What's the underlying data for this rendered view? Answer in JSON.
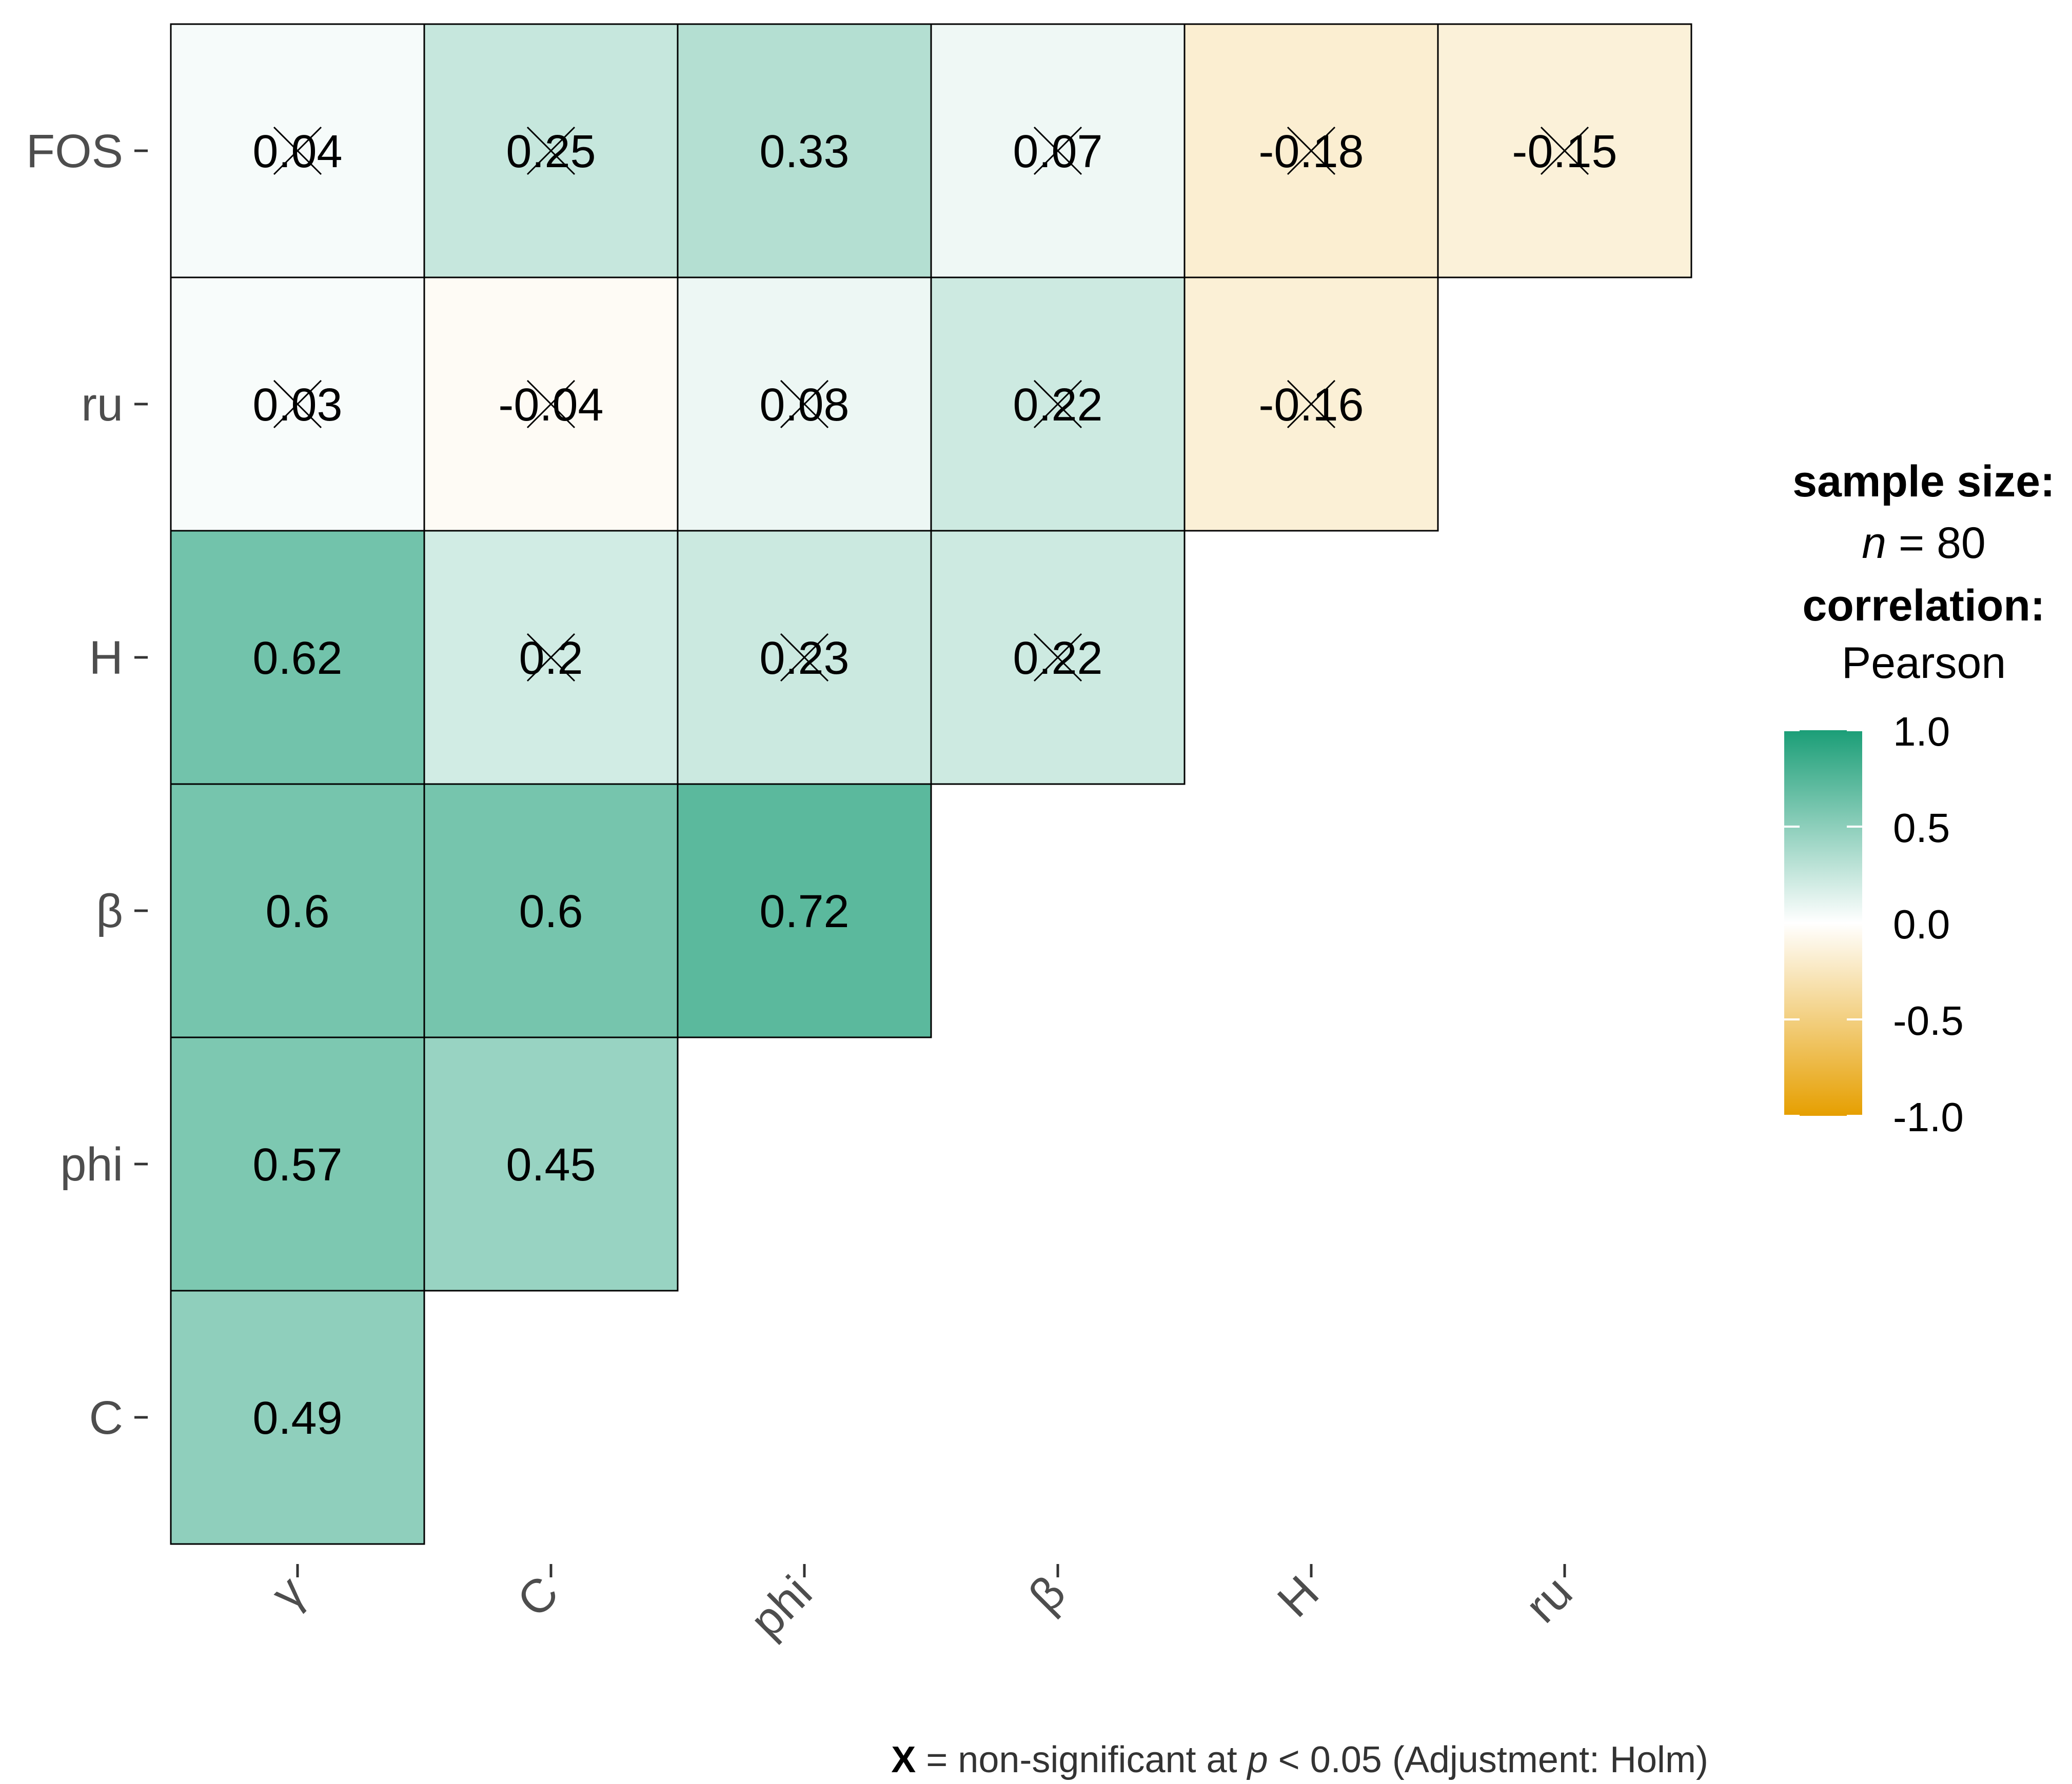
{
  "chart_data": {
    "type": "heatmap",
    "title": "",
    "matrix_style": "lower-triangle correlogram",
    "x_categories": [
      "γ",
      "C",
      "phi",
      "β",
      "H",
      "ru"
    ],
    "y_categories": [
      "C",
      "phi",
      "β",
      "H",
      "ru",
      "FOS"
    ],
    "cells": [
      {
        "x": "γ",
        "y": "FOS",
        "value": 0.04,
        "label": "0.04",
        "significant": false
      },
      {
        "x": "C",
        "y": "FOS",
        "value": 0.25,
        "label": "0.25",
        "significant": false
      },
      {
        "x": "phi",
        "y": "FOS",
        "value": 0.33,
        "label": "0.33",
        "significant": true
      },
      {
        "x": "β",
        "y": "FOS",
        "value": 0.07,
        "label": "0.07",
        "significant": false
      },
      {
        "x": "H",
        "y": "FOS",
        "value": -0.18,
        "label": "-0.18",
        "significant": false
      },
      {
        "x": "ru",
        "y": "FOS",
        "value": -0.15,
        "label": "-0.15",
        "significant": false
      },
      {
        "x": "γ",
        "y": "ru",
        "value": 0.03,
        "label": "0.03",
        "significant": false
      },
      {
        "x": "C",
        "y": "ru",
        "value": -0.04,
        "label": "-0.04",
        "significant": false
      },
      {
        "x": "phi",
        "y": "ru",
        "value": 0.08,
        "label": "0.08",
        "significant": false
      },
      {
        "x": "β",
        "y": "ru",
        "value": 0.22,
        "label": "0.22",
        "significant": false
      },
      {
        "x": "H",
        "y": "ru",
        "value": -0.16,
        "label": "-0.16",
        "significant": false
      },
      {
        "x": "γ",
        "y": "H",
        "value": 0.62,
        "label": "0.62",
        "significant": true
      },
      {
        "x": "C",
        "y": "H",
        "value": 0.2,
        "label": "0.2",
        "significant": false
      },
      {
        "x": "phi",
        "y": "H",
        "value": 0.23,
        "label": "0.23",
        "significant": false
      },
      {
        "x": "β",
        "y": "H",
        "value": 0.22,
        "label": "0.22",
        "significant": false
      },
      {
        "x": "γ",
        "y": "β",
        "value": 0.6,
        "label": "0.6",
        "significant": true
      },
      {
        "x": "C",
        "y": "β",
        "value": 0.6,
        "label": "0.6",
        "significant": true
      },
      {
        "x": "phi",
        "y": "β",
        "value": 0.72,
        "label": "0.72",
        "significant": true
      },
      {
        "x": "γ",
        "y": "phi",
        "value": 0.57,
        "label": "0.57",
        "significant": true
      },
      {
        "x": "C",
        "y": "phi",
        "value": 0.45,
        "label": "0.45",
        "significant": true
      },
      {
        "x": "γ",
        "y": "C",
        "value": 0.49,
        "label": "0.49",
        "significant": true
      }
    ],
    "colorbar": {
      "min": -1.0,
      "max": 1.0,
      "ticks": [
        "1.0",
        "0.5",
        "0.0",
        "-0.5",
        "-1.0"
      ],
      "tick_values": [
        1.0,
        0.5,
        0.0,
        -0.5,
        -1.0
      ],
      "colors": {
        "high": "#1b9e77",
        "mid": "#ffffff",
        "low": "#e69f00"
      }
    },
    "legend": {
      "sample_size_title": "sample size:",
      "sample_size_n": "n",
      "sample_size_value": " = 80",
      "correlation_title": "correlation:",
      "correlation_method": "Pearson",
      "placement": "right"
    },
    "caption": {
      "marker": "X",
      "text_before_p": " = non-significant at ",
      "p_symbol": "p",
      "text_after_p": " < 0.05 (Adjustment: Holm)"
    }
  }
}
